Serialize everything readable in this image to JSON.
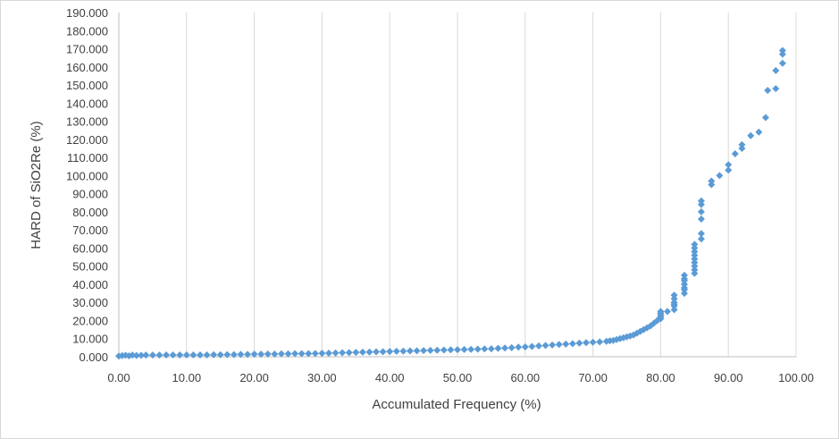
{
  "chart_data": {
    "type": "scatter",
    "xlabel": "Accumulated Frequency (%)",
    "ylabel": "HARD of SiO2Re (%)",
    "xlim": [
      0,
      100
    ],
    "ylim": [
      0,
      190
    ],
    "x_ticks": [
      "0.00",
      "10.00",
      "20.00",
      "30.00",
      "40.00",
      "50.00",
      "60.00",
      "70.00",
      "80.00",
      "90.00",
      "100.00"
    ],
    "y_ticks": [
      "0.000",
      "10.000",
      "20.000",
      "30.000",
      "40.000",
      "50.000",
      "60.000",
      "70.000",
      "80.000",
      "90.000",
      "100.000",
      "110.000",
      "120.000",
      "130.000",
      "140.000",
      "150.000",
      "160.000",
      "170.000",
      "180.000",
      "190.000"
    ],
    "grid": "vertical",
    "marker": "diamond",
    "marker_color": "#5b9bd5",
    "points": [
      [
        0.0,
        0.4
      ],
      [
        0.5,
        0.6
      ],
      [
        1.0,
        0.8
      ],
      [
        1.5,
        0.5
      ],
      [
        2.0,
        0.9
      ],
      [
        2.6,
        0.7
      ],
      [
        3.3,
        0.8
      ],
      [
        4.0,
        0.9
      ],
      [
        5.0,
        0.9
      ],
      [
        6.0,
        0.9
      ],
      [
        7.0,
        1.0
      ],
      [
        8.0,
        1.0
      ],
      [
        9.0,
        1.0
      ],
      [
        10.0,
        1.0
      ],
      [
        11.0,
        1.0
      ],
      [
        12.0,
        1.0
      ],
      [
        13.0,
        1.0
      ],
      [
        14.0,
        1.1
      ],
      [
        15.0,
        1.1
      ],
      [
        16.0,
        1.2
      ],
      [
        17.0,
        1.2
      ],
      [
        18.0,
        1.3
      ],
      [
        19.0,
        1.3
      ],
      [
        20.0,
        1.4
      ],
      [
        21.0,
        1.4
      ],
      [
        22.0,
        1.5
      ],
      [
        23.0,
        1.5
      ],
      [
        24.0,
        1.6
      ],
      [
        25.0,
        1.6
      ],
      [
        26.0,
        1.7
      ],
      [
        27.0,
        1.7
      ],
      [
        28.0,
        1.7
      ],
      [
        29.0,
        1.8
      ],
      [
        30.0,
        1.9
      ],
      [
        31.0,
        2.0
      ],
      [
        32.0,
        2.1
      ],
      [
        33.0,
        2.2
      ],
      [
        34.0,
        2.3
      ],
      [
        35.0,
        2.4
      ],
      [
        36.0,
        2.5
      ],
      [
        37.0,
        2.6
      ],
      [
        38.0,
        2.7
      ],
      [
        39.0,
        2.8
      ],
      [
        40.0,
        2.9
      ],
      [
        41.0,
        3.0
      ],
      [
        42.0,
        3.1
      ],
      [
        43.0,
        3.2
      ],
      [
        44.0,
        3.3
      ],
      [
        45.0,
        3.4
      ],
      [
        46.0,
        3.5
      ],
      [
        47.0,
        3.6
      ],
      [
        48.0,
        3.7
      ],
      [
        49.0,
        3.8
      ],
      [
        50.0,
        3.9
      ],
      [
        51.0,
        4.0
      ],
      [
        52.0,
        4.1
      ],
      [
        53.0,
        4.2
      ],
      [
        54.0,
        4.3
      ],
      [
        55.0,
        4.4
      ],
      [
        56.0,
        4.6
      ],
      [
        57.0,
        4.8
      ],
      [
        58.0,
        5.0
      ],
      [
        59.0,
        5.3
      ],
      [
        60.0,
        5.4
      ],
      [
        61.0,
        5.7
      ],
      [
        62.0,
        6.0
      ],
      [
        63.0,
        6.2
      ],
      [
        64.0,
        6.5
      ],
      [
        65.0,
        6.8
      ],
      [
        66.0,
        7.0
      ],
      [
        67.0,
        7.2
      ],
      [
        68.0,
        7.5
      ],
      [
        69.0,
        7.8
      ],
      [
        70.0,
        8.0
      ],
      [
        71.0,
        8.2
      ],
      [
        72.0,
        8.5
      ],
      [
        72.5,
        8.8
      ],
      [
        73.0,
        9.0
      ],
      [
        73.5,
        9.5
      ],
      [
        74.0,
        10.0
      ],
      [
        74.5,
        10.5
      ],
      [
        75.0,
        11.0
      ],
      [
        75.5,
        11.5
      ],
      [
        76.0,
        12.0
      ],
      [
        76.5,
        13.0
      ],
      [
        77.0,
        14.0
      ],
      [
        77.5,
        15.0
      ],
      [
        78.0,
        16.0
      ],
      [
        78.5,
        17.0
      ],
      [
        79.0,
        18.5
      ],
      [
        79.5,
        20.0
      ],
      [
        80.0,
        21.0
      ],
      [
        80.0,
        22.0
      ],
      [
        80.0,
        23.0
      ],
      [
        80.0,
        24.0
      ],
      [
        80.0,
        25.0
      ],
      [
        81.0,
        25.0
      ],
      [
        82.0,
        26.0
      ],
      [
        82.0,
        28.0
      ],
      [
        82.0,
        29.0
      ],
      [
        82.0,
        30.0
      ],
      [
        82.0,
        32.0
      ],
      [
        82.0,
        34.0
      ],
      [
        83.5,
        35.0
      ],
      [
        83.5,
        37.0
      ],
      [
        83.5,
        38.0
      ],
      [
        83.5,
        40.0
      ],
      [
        83.5,
        42.0
      ],
      [
        83.5,
        43.0
      ],
      [
        83.5,
        45.0
      ],
      [
        85.0,
        46.0
      ],
      [
        85.0,
        48.0
      ],
      [
        85.0,
        50.0
      ],
      [
        85.0,
        52.0
      ],
      [
        85.0,
        54.0
      ],
      [
        85.0,
        56.0
      ],
      [
        85.0,
        58.0
      ],
      [
        85.0,
        60.0
      ],
      [
        85.0,
        62.0
      ],
      [
        86.0,
        65.0
      ],
      [
        86.0,
        68.0
      ],
      [
        86.0,
        76.0
      ],
      [
        86.0,
        80.0
      ],
      [
        86.0,
        84.0
      ],
      [
        86.0,
        86.0
      ],
      [
        87.5,
        95.0
      ],
      [
        87.5,
        97.0
      ],
      [
        88.7,
        100.0
      ],
      [
        90.0,
        103.0
      ],
      [
        90.0,
        106.0
      ],
      [
        91.0,
        112.0
      ],
      [
        92.0,
        115.0
      ],
      [
        92.0,
        117.0
      ],
      [
        93.3,
        122.0
      ],
      [
        94.5,
        124.0
      ],
      [
        95.5,
        132.0
      ],
      [
        95.8,
        147.0
      ],
      [
        97.0,
        148.0
      ],
      [
        97.0,
        158.0
      ],
      [
        98.0,
        162.0
      ],
      [
        98.0,
        167.0
      ],
      [
        98.0,
        169.0
      ]
    ]
  }
}
